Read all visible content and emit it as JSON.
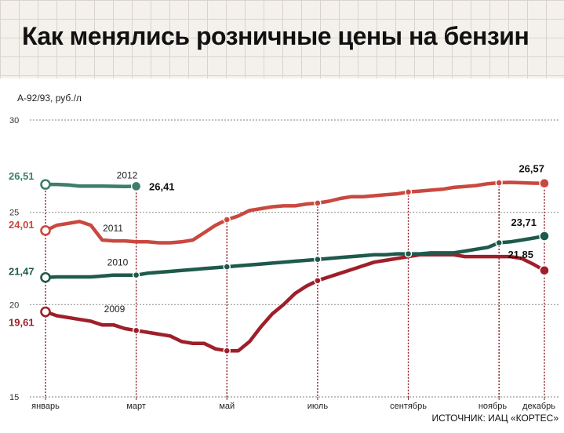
{
  "title": "Как менялись розничные цены на бензин",
  "source": "ИСТОЧНИК: ИАЦ «КОРТЕС»",
  "chart_data": {
    "type": "line",
    "ylabel": "А-92/93, руб./л",
    "ylim": [
      15,
      30
    ],
    "yticks": [
      "30",
      "25",
      "20",
      "15"
    ],
    "ytick_values": [
      30,
      25,
      20,
      15
    ],
    "xlim": [
      0,
      11
    ],
    "x_tick_labels": [
      {
        "pos": 0,
        "label": "январь"
      },
      {
        "pos": 2,
        "label": "март"
      },
      {
        "pos": 4,
        "label": "май"
      },
      {
        "pos": 6,
        "label": "июль"
      },
      {
        "pos": 8,
        "label": "сентябрь"
      },
      {
        "pos": 10,
        "label": "ноябрь"
      },
      {
        "pos": 11,
        "label": "декабрь"
      }
    ],
    "grid": true,
    "series": [
      {
        "name": "2009",
        "color": "#9e1f2a",
        "x": [
          0,
          0.25,
          0.5,
          0.75,
          1,
          1.25,
          1.5,
          1.75,
          2,
          2.25,
          2.5,
          2.75,
          3,
          3.25,
          3.5,
          3.75,
          4,
          4.25,
          4.5,
          4.75,
          5,
          5.25,
          5.5,
          5.75,
          6,
          6.25,
          6.5,
          6.75,
          7,
          7.25,
          7.5,
          7.75,
          8,
          8.25,
          8.5,
          8.75,
          9,
          9.25,
          9.5,
          9.75,
          10,
          10.25,
          10.5,
          10.75,
          11
        ],
        "y": [
          19.61,
          19.4,
          19.3,
          19.2,
          19.1,
          18.9,
          18.9,
          18.7,
          18.6,
          18.5,
          18.4,
          18.3,
          18.0,
          17.9,
          17.9,
          17.6,
          17.5,
          17.5,
          18.0,
          18.8,
          19.5,
          20.0,
          20.6,
          21.0,
          21.3,
          21.5,
          21.7,
          21.9,
          22.1,
          22.3,
          22.4,
          22.5,
          22.6,
          22.7,
          22.7,
          22.7,
          22.7,
          22.6,
          22.6,
          22.6,
          22.6,
          22.6,
          22.5,
          22.2,
          21.85
        ],
        "last_label": "21,85"
      },
      {
        "name": "2010",
        "color": "#1e5a4c",
        "x": [
          0,
          0.25,
          0.5,
          0.75,
          1,
          1.25,
          1.5,
          1.75,
          2,
          2.25,
          2.5,
          2.75,
          3,
          3.25,
          3.5,
          3.75,
          4,
          4.25,
          4.5,
          4.75,
          5,
          5.25,
          5.5,
          5.75,
          6,
          6.25,
          6.5,
          6.75,
          7,
          7.25,
          7.5,
          7.75,
          8,
          8.25,
          8.5,
          8.75,
          9,
          9.25,
          9.5,
          9.75,
          10,
          10.25,
          10.5,
          10.75,
          11
        ],
        "y": [
          21.47,
          21.5,
          21.5,
          21.5,
          21.5,
          21.55,
          21.6,
          21.6,
          21.6,
          21.7,
          21.75,
          21.8,
          21.85,
          21.9,
          21.95,
          22.0,
          22.05,
          22.1,
          22.15,
          22.2,
          22.25,
          22.3,
          22.35,
          22.4,
          22.45,
          22.5,
          22.55,
          22.6,
          22.65,
          22.7,
          22.7,
          22.75,
          22.75,
          22.75,
          22.8,
          22.8,
          22.8,
          22.9,
          23.0,
          23.1,
          23.35,
          23.4,
          23.5,
          23.6,
          23.71
        ],
        "last_label": "23,71"
      },
      {
        "name": "2011",
        "color": "#c9483f",
        "x": [
          0,
          0.25,
          0.5,
          0.75,
          1,
          1.25,
          1.5,
          1.75,
          2,
          2.25,
          2.5,
          2.75,
          3,
          3.25,
          3.5,
          3.75,
          4,
          4.25,
          4.5,
          4.75,
          5,
          5.25,
          5.5,
          5.75,
          6,
          6.25,
          6.5,
          6.75,
          7,
          7.25,
          7.5,
          7.75,
          8,
          8.25,
          8.5,
          8.75,
          9,
          9.25,
          9.5,
          9.75,
          10,
          10.25,
          10.5,
          10.75,
          11
        ],
        "y": [
          24.01,
          24.3,
          24.4,
          24.5,
          24.3,
          23.5,
          23.45,
          23.45,
          23.4,
          23.4,
          23.35,
          23.35,
          23.4,
          23.5,
          23.9,
          24.3,
          24.6,
          24.8,
          25.1,
          25.2,
          25.3,
          25.35,
          25.35,
          25.45,
          25.5,
          25.6,
          25.75,
          25.85,
          25.85,
          25.9,
          25.95,
          26.0,
          26.1,
          26.15,
          26.2,
          26.25,
          26.35,
          26.4,
          26.45,
          26.55,
          26.6,
          26.62,
          26.6,
          26.58,
          26.57
        ],
        "last_label": "26,57"
      },
      {
        "name": "2012",
        "color": "#3d7d6d",
        "x": [
          0,
          0.25,
          0.5,
          0.75,
          1,
          1.25,
          1.5,
          1.75,
          2
        ],
        "y": [
          26.51,
          26.51,
          26.48,
          26.42,
          26.42,
          26.42,
          26.41,
          26.4,
          26.41
        ],
        "last_label": "26,41"
      }
    ],
    "first_labels": [
      {
        "series": "2012",
        "text": "26,51"
      },
      {
        "series": "2011",
        "text": "24,01"
      },
      {
        "series": "2010",
        "text": "21,47"
      },
      {
        "series": "2009",
        "text": "19,61"
      }
    ],
    "markers": [
      {
        "series": "2009",
        "x": 0
      },
      {
        "series": "2009",
        "x": 2
      },
      {
        "series": "2009",
        "x": 4
      },
      {
        "series": "2009",
        "x": 6
      },
      {
        "series": "2009",
        "x": 11
      },
      {
        "series": "2010",
        "x": 0
      },
      {
        "series": "2010",
        "x": 2
      },
      {
        "series": "2010",
        "x": 4
      },
      {
        "series": "2010",
        "x": 6
      },
      {
        "series": "2010",
        "x": 8
      },
      {
        "series": "2010",
        "x": 10
      },
      {
        "series": "2010",
        "x": 11
      },
      {
        "series": "2011",
        "x": 0
      },
      {
        "series": "2011",
        "x": 4
      },
      {
        "series": "2011",
        "x": 6
      },
      {
        "series": "2011",
        "x": 8
      },
      {
        "series": "2011",
        "x": 10
      },
      {
        "series": "2011",
        "x": 11
      },
      {
        "series": "2012",
        "x": 0
      },
      {
        "series": "2012",
        "x": 2
      }
    ]
  }
}
